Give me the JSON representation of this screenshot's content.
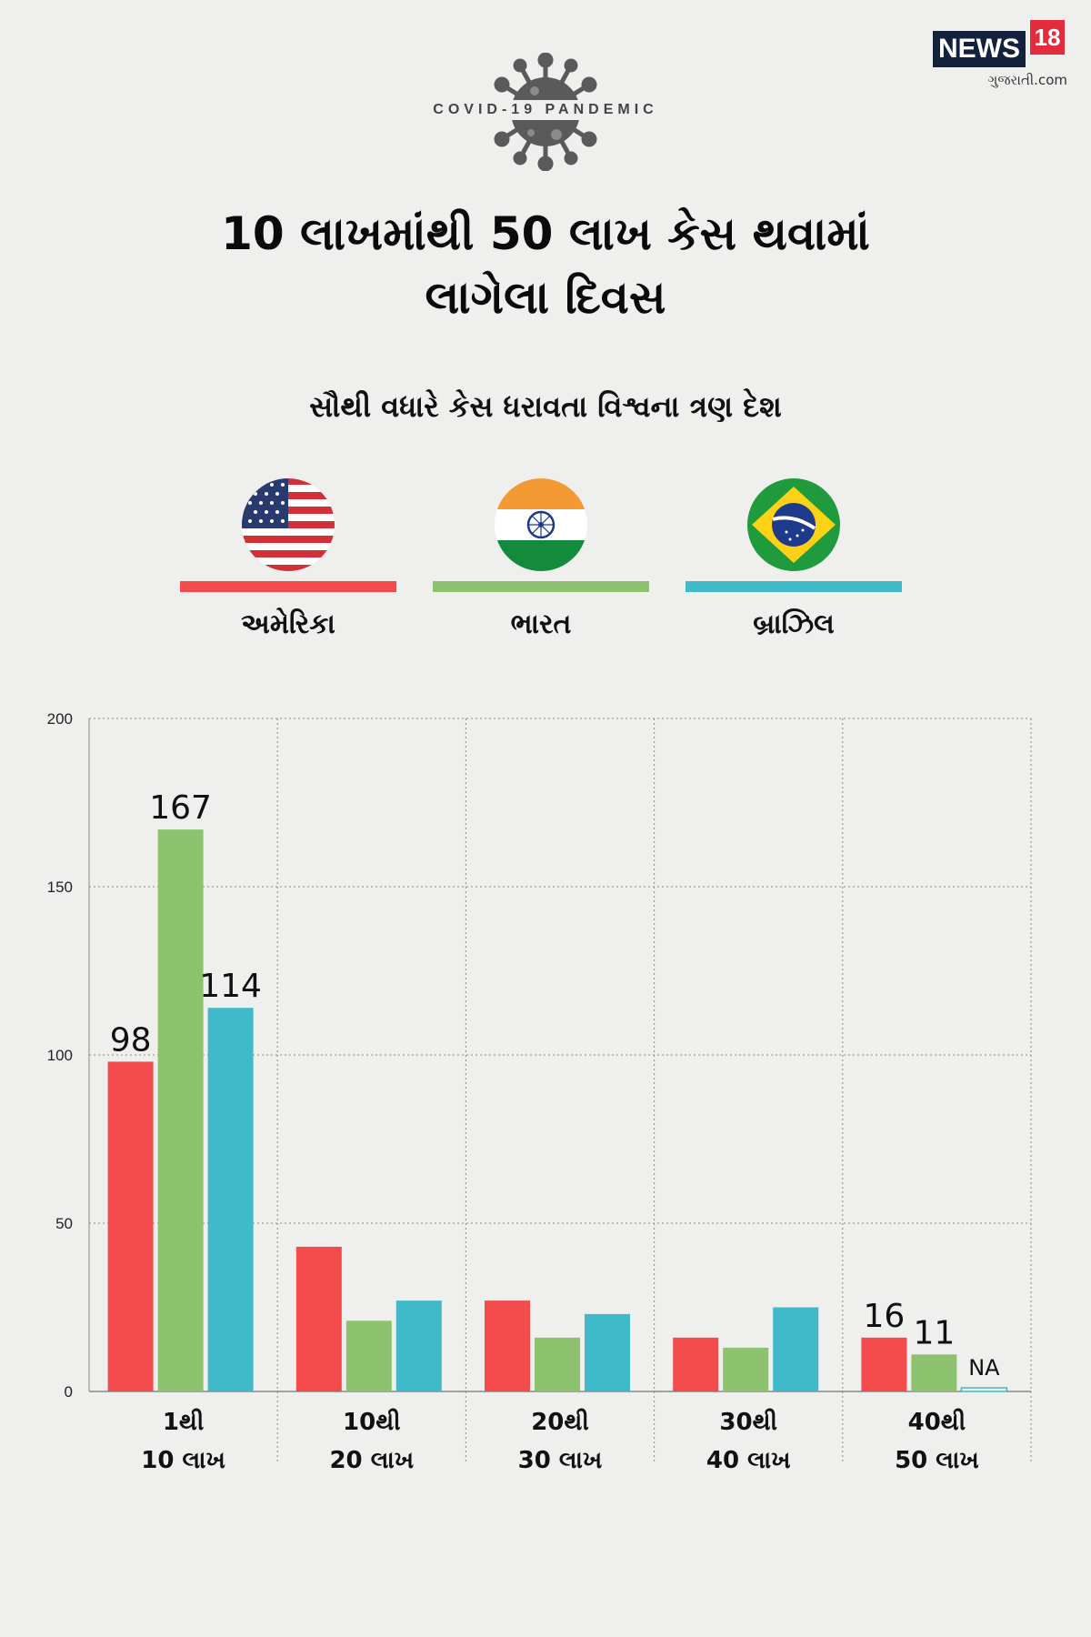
{
  "brand": {
    "logo_text": "NEWS",
    "logo_number": "18",
    "logo_sub": "ગુજરાતી.com"
  },
  "header": {
    "tagline": "COVID-19 PANDEMIC",
    "title_line1": "10 લાખમાંથી 50 લાખ કેસ થવામાં",
    "title_line2": "લાગેલા દિવસ",
    "subtitle": "સૌથી વધારે કેસ ધરાવતા વિશ્વના ત્રણ દેશ"
  },
  "legend": [
    {
      "label": "અમેરિકા",
      "color": "#f44b4d",
      "flag": "usa-flag-icon"
    },
    {
      "label": "ભારત",
      "color": "#8dc26f",
      "flag": "india-flag-icon"
    },
    {
      "label": "બ્રાઝિલ",
      "color": "#40b9c9",
      "flag": "brazil-flag-icon"
    }
  ],
  "chart_data": {
    "type": "bar",
    "categories": [
      [
        "1થી",
        "10 લાખ"
      ],
      [
        "10થી",
        "20 લાખ"
      ],
      [
        "20થી",
        "30 લાખ"
      ],
      [
        "30થી",
        "40 લાખ"
      ],
      [
        "40થી",
        "50 લાખ"
      ]
    ],
    "series": [
      {
        "name": "અમેરિકા",
        "color": "#f44b4d",
        "values": [
          98,
          43,
          27,
          16,
          16
        ]
      },
      {
        "name": "ભારત",
        "color": "#8dc26f",
        "values": [
          167,
          21,
          16,
          13,
          11
        ]
      },
      {
        "name": "બ્રાઝિલ",
        "color": "#40b9c9",
        "values": [
          114,
          27,
          23,
          25,
          null
        ]
      }
    ],
    "data_labels": [
      {
        "category": 0,
        "series": 0,
        "text": "98"
      },
      {
        "category": 0,
        "series": 1,
        "text": "167"
      },
      {
        "category": 0,
        "series": 2,
        "text": "114"
      },
      {
        "category": 4,
        "series": 0,
        "text": "16"
      },
      {
        "category": 4,
        "series": 1,
        "text": "11"
      },
      {
        "category": 4,
        "series": 2,
        "text": "NA"
      }
    ],
    "yticks": [
      "200",
      "150",
      "100",
      "50",
      "0"
    ],
    "ylim": [
      0,
      200
    ],
    "grid": true,
    "legend_position": "top"
  }
}
